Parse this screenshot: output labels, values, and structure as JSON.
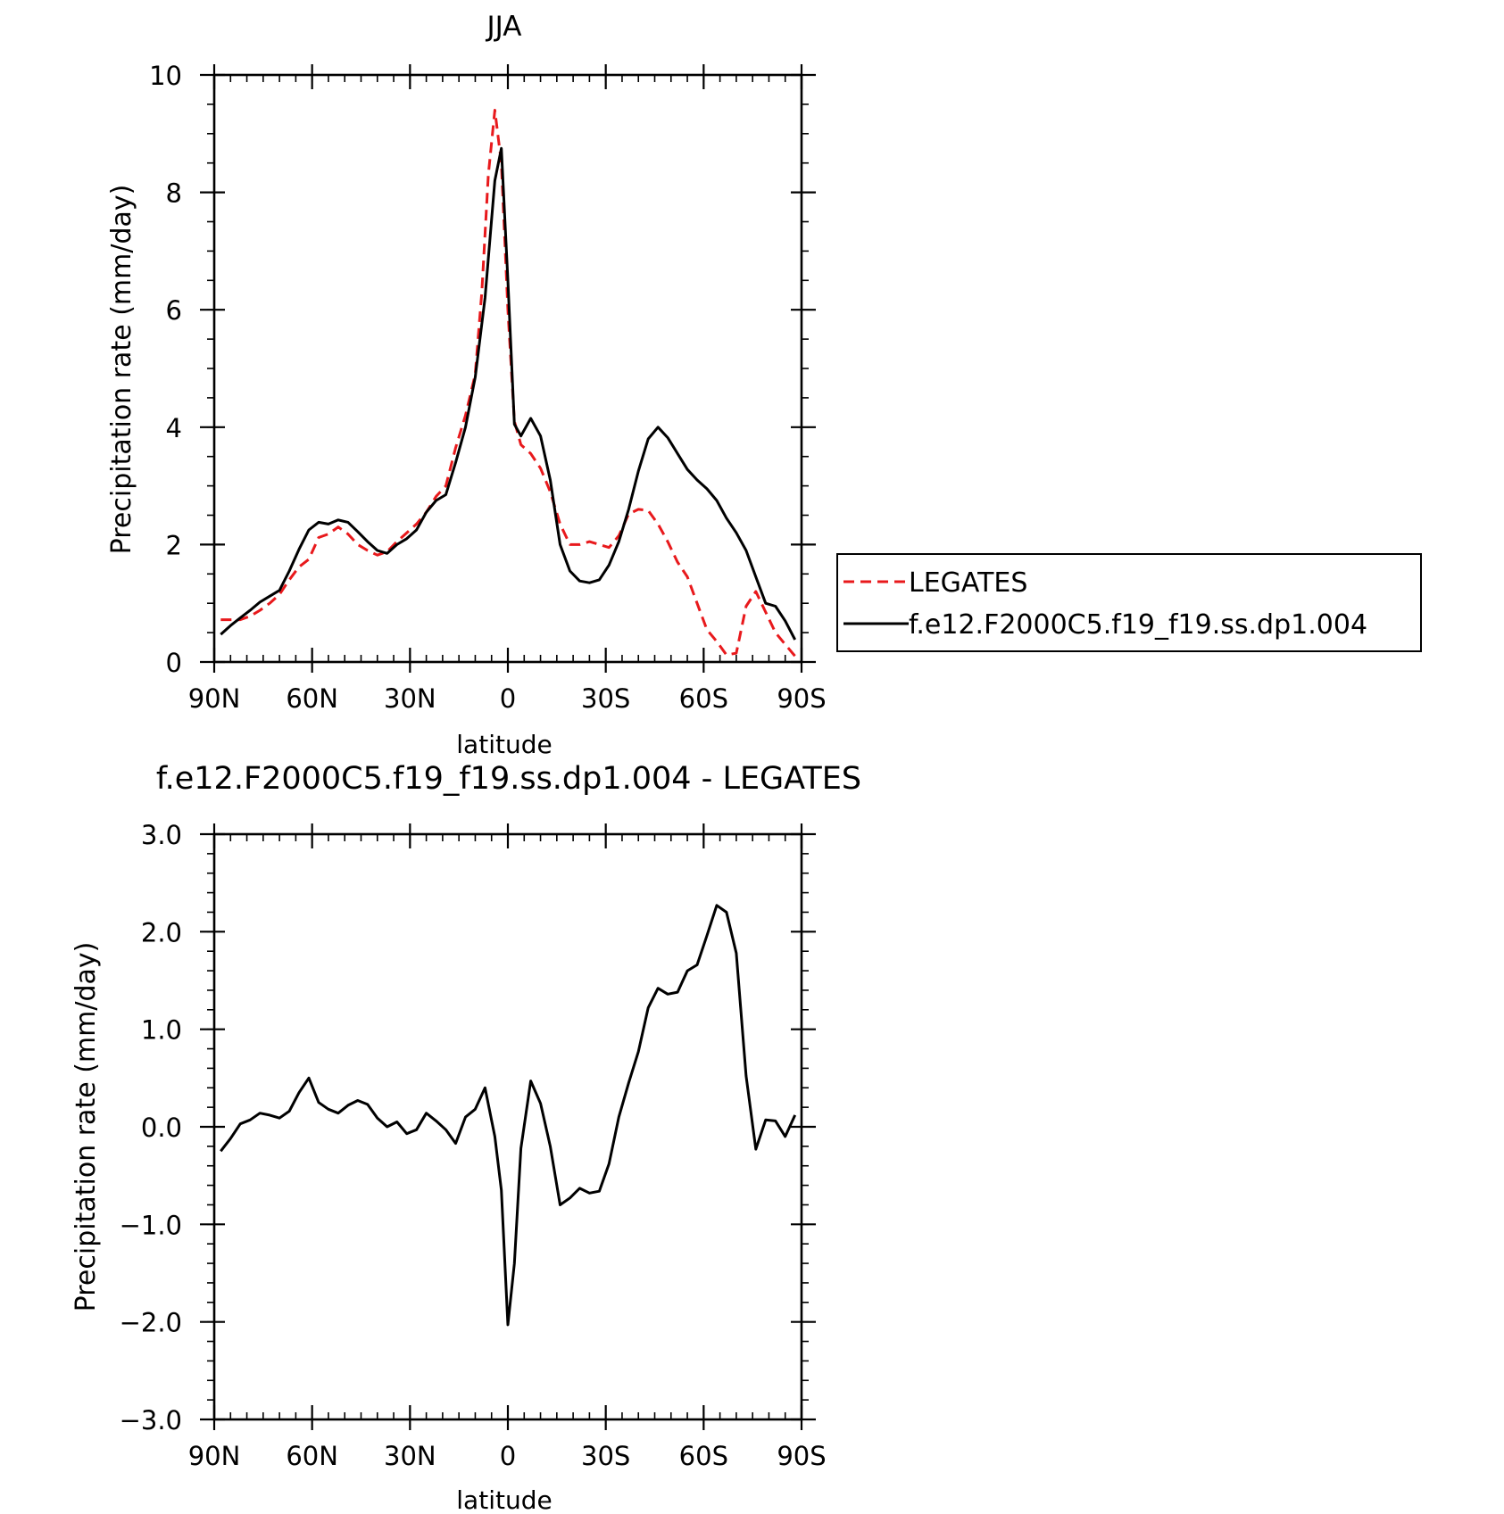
{
  "colors": {
    "legates": "#e8191c",
    "model": "#000000",
    "axes": "#000000"
  },
  "chart_data": [
    {
      "type": "line",
      "title": "JJA",
      "xlabel": "latitude",
      "ylabel": "Precipitation rate (mm/day)",
      "xlim": [
        90,
        -90
      ],
      "ylim": [
        0,
        10
      ],
      "x_ticks": [
        {
          "value": 90,
          "label": "90N"
        },
        {
          "value": 60,
          "label": "60N"
        },
        {
          "value": 30,
          "label": "30N"
        },
        {
          "value": 0,
          "label": "0"
        },
        {
          "value": -30,
          "label": "30S"
        },
        {
          "value": -60,
          "label": "60S"
        },
        {
          "value": -90,
          "label": "90S"
        }
      ],
      "y_ticks": [
        {
          "value": 0,
          "label": "0"
        },
        {
          "value": 2,
          "label": "2"
        },
        {
          "value": 4,
          "label": "4"
        },
        {
          "value": 6,
          "label": "6"
        },
        {
          "value": 8,
          "label": "8"
        },
        {
          "value": 10,
          "label": "10"
        }
      ],
      "legend_position": "outside-right",
      "series": [
        {
          "name": "LEGATES",
          "style": "dashed",
          "color": "#e8191c",
          "x": [
            88,
            85,
            82,
            79,
            76,
            73,
            70,
            67,
            64,
            61,
            58,
            55,
            52,
            49,
            46,
            43,
            40,
            37,
            34,
            31,
            28,
            25,
            22,
            19,
            16,
            13,
            10,
            8,
            6,
            4,
            2,
            0,
            -2,
            -4,
            -7,
            -10,
            -13,
            -16,
            -19,
            -22,
            -25,
            -28,
            -31,
            -34,
            -37,
            -40,
            -43,
            -46,
            -49,
            -52,
            -55,
            -58,
            -61,
            -64,
            -67,
            -70,
            -73,
            -76,
            -79,
            -82,
            -85,
            -88
          ],
          "y": [
            0.72,
            0.72,
            0.72,
            0.78,
            0.88,
            1.0,
            1.15,
            1.4,
            1.62,
            1.75,
            2.12,
            2.18,
            2.3,
            2.18,
            2.0,
            1.9,
            1.82,
            1.88,
            2.05,
            2.2,
            2.35,
            2.55,
            2.82,
            3.0,
            3.65,
            4.2,
            4.9,
            6.3,
            8.3,
            9.4,
            8.5,
            6.0,
            4.1,
            3.7,
            3.55,
            3.3,
            2.9,
            2.35,
            2.0,
            2.0,
            2.05,
            2.0,
            1.95,
            2.15,
            2.52,
            2.6,
            2.58,
            2.35,
            2.05,
            1.7,
            1.45,
            1.0,
            0.55,
            0.35,
            0.12,
            0.15,
            0.95,
            1.2,
            0.85,
            0.5,
            0.3,
            0.1
          ]
        },
        {
          "name": "f.e12.F2000C5.f19_f19.ss.dp1.004",
          "style": "solid",
          "color": "#000000",
          "x": [
            88,
            85,
            82,
            79,
            76,
            73,
            70,
            67,
            64,
            61,
            58,
            55,
            52,
            49,
            46,
            43,
            40,
            37,
            34,
            31,
            28,
            25,
            22,
            19,
            16,
            13,
            10,
            7,
            4,
            2,
            0,
            -2,
            -4,
            -7,
            -10,
            -13,
            -16,
            -19,
            -22,
            -25,
            -28,
            -31,
            -34,
            -37,
            -40,
            -43,
            -46,
            -49,
            -52,
            -55,
            -58,
            -61,
            -64,
            -67,
            -70,
            -73,
            -76,
            -79,
            -82,
            -85,
            -88
          ],
          "y": [
            0.47,
            0.62,
            0.75,
            0.88,
            1.02,
            1.12,
            1.22,
            1.55,
            1.92,
            2.25,
            2.38,
            2.35,
            2.42,
            2.38,
            2.22,
            2.05,
            1.9,
            1.85,
            2.0,
            2.1,
            2.25,
            2.55,
            2.75,
            2.85,
            3.4,
            4.0,
            4.85,
            6.2,
            8.2,
            8.75,
            6.5,
            4.05,
            3.85,
            4.15,
            3.85,
            3.1,
            2.0,
            1.55,
            1.38,
            1.35,
            1.4,
            1.65,
            2.05,
            2.6,
            3.25,
            3.8,
            4.0,
            3.82,
            3.55,
            3.28,
            3.1,
            2.95,
            2.75,
            2.45,
            2.2,
            1.9,
            1.45,
            1.0,
            0.95,
            0.7,
            0.38
          ]
        }
      ]
    },
    {
      "type": "line",
      "title": "f.e12.F2000C5.f19_f19.ss.dp1.004 - LEGATES",
      "xlabel": "latitude",
      "ylabel": "Precipitation rate (mm/day)",
      "xlim": [
        90,
        -90
      ],
      "ylim": [
        -3.0,
        3.0
      ],
      "x_ticks": [
        {
          "value": 90,
          "label": "90N"
        },
        {
          "value": 60,
          "label": "60N"
        },
        {
          "value": 30,
          "label": "30N"
        },
        {
          "value": 0,
          "label": "0"
        },
        {
          "value": -30,
          "label": "30S"
        },
        {
          "value": -60,
          "label": "60S"
        },
        {
          "value": -90,
          "label": "90S"
        }
      ],
      "y_ticks": [
        {
          "value": -3.0,
          "label": "−3.0"
        },
        {
          "value": -2.0,
          "label": "−2.0"
        },
        {
          "value": -1.0,
          "label": "−1.0"
        },
        {
          "value": 0.0,
          "label": "0.0"
        },
        {
          "value": 1.0,
          "label": "1.0"
        },
        {
          "value": 2.0,
          "label": "2.0"
        },
        {
          "value": 3.0,
          "label": "3.0"
        }
      ],
      "series": [
        {
          "style": "solid",
          "color": "#000000",
          "x": [
            88,
            85,
            82,
            79,
            76,
            73,
            70,
            67,
            64,
            61,
            58,
            55,
            52,
            49,
            46,
            43,
            40,
            37,
            34,
            31,
            28,
            25,
            22,
            19,
            16,
            13,
            10,
            7,
            4,
            2,
            0,
            -2,
            -4,
            -7,
            -10,
            -13,
            -16,
            -19,
            -22,
            -25,
            -28,
            -31,
            -34,
            -37,
            -40,
            -43,
            -46,
            -49,
            -52,
            -55,
            -58,
            -61,
            -64,
            -67,
            -70,
            -73,
            -76,
            -79,
            -82,
            -85,
            -88
          ],
          "y": [
            -0.25,
            -0.12,
            0.03,
            0.07,
            0.14,
            0.12,
            0.09,
            0.16,
            0.35,
            0.5,
            0.25,
            0.18,
            0.14,
            0.22,
            0.27,
            0.23,
            0.09,
            0.0,
            0.05,
            -0.07,
            -0.03,
            0.14,
            0.06,
            -0.03,
            -0.17,
            0.1,
            0.18,
            0.4,
            -0.1,
            -0.65,
            -2.03,
            -1.4,
            -0.22,
            0.47,
            0.24,
            -0.2,
            -0.8,
            -0.73,
            -0.63,
            -0.68,
            -0.66,
            -0.38,
            0.1,
            0.45,
            0.77,
            1.22,
            1.42,
            1.36,
            1.38,
            1.6,
            1.66,
            1.96,
            2.27,
            2.2,
            1.78,
            0.52,
            -0.23,
            0.07,
            0.06,
            -0.1,
            0.12
          ]
        }
      ]
    }
  ]
}
